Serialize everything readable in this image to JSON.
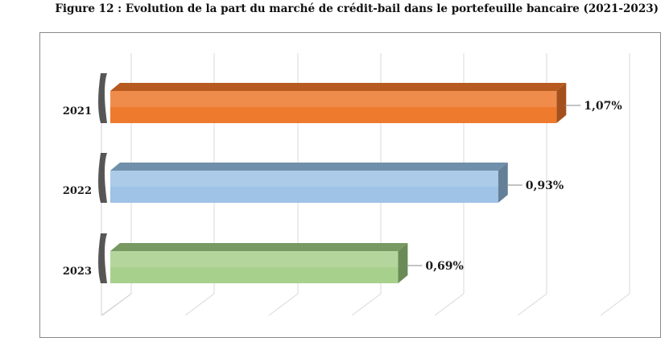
{
  "title": "Figure 12 : Evolution de la part du marché de crédit-bail dans le portefeuille bancaire (2021-2023)",
  "chart_data": {
    "type": "bar",
    "orientation": "horizontal",
    "style": "3d",
    "categories": [
      "2021",
      "2022",
      "2023"
    ],
    "values": [
      1.07,
      0.93,
      0.69
    ],
    "data_labels": [
      "1,07%",
      "0,93%",
      "0,69%"
    ],
    "unit": "%",
    "colors": [
      "#ee7a2e",
      "#9ec3e6",
      "#a8d08d"
    ],
    "top_colors": [
      "#b65a20",
      "#6f8faa",
      "#789a62"
    ],
    "side_colors": [
      "#a5501c",
      "#647f98",
      "#6a8a56"
    ],
    "grid": true,
    "grid_color": "#d9d9d9"
  }
}
